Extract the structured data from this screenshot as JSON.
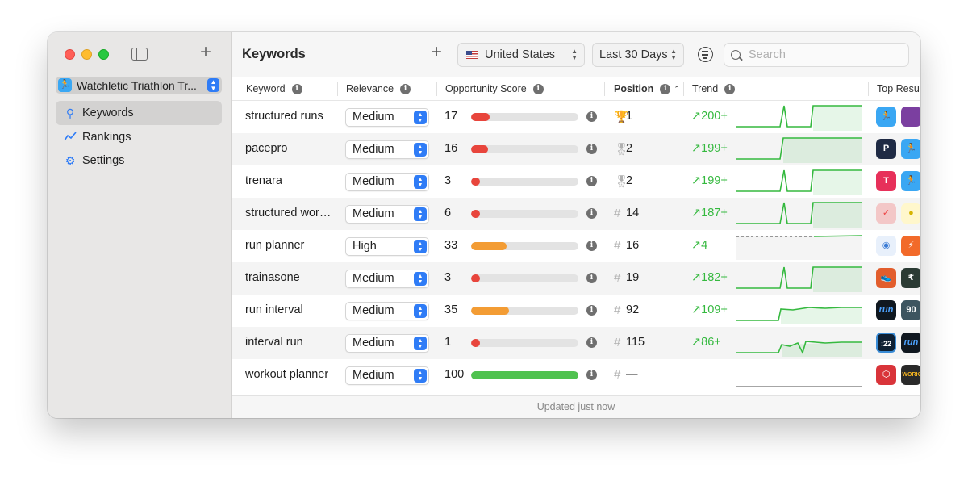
{
  "sidebar": {
    "app_name": "Watchletic Triathlon Tr...",
    "items": [
      {
        "label": "Keywords",
        "icon": "search-icon"
      },
      {
        "label": "Rankings",
        "icon": "chart-line-icon"
      },
      {
        "label": "Settings",
        "icon": "gear-icon"
      }
    ]
  },
  "toolbar": {
    "title": "Keywords",
    "country": "United States",
    "period": "Last 30 Days",
    "search_placeholder": "Search"
  },
  "table": {
    "headers": {
      "keyword": "Keyword",
      "relevance": "Relevance",
      "score": "Opportunity Score",
      "position": "Position",
      "trend": "Trend",
      "top_results": "Top Results"
    },
    "rows": [
      {
        "keyword": "structured runs",
        "relevance": "Medium",
        "score": "17",
        "score_value": 17,
        "score_color": "#e8453c",
        "position_icon": "trophy",
        "position": "1",
        "trend": "200+",
        "spark": "A"
      },
      {
        "keyword": "pacepro",
        "relevance": "Medium",
        "score": "16",
        "score_value": 16,
        "score_color": "#e8453c",
        "position_icon": "medal",
        "position": "2",
        "trend": "199+",
        "spark": "B"
      },
      {
        "keyword": "trenara",
        "relevance": "Medium",
        "score": "3",
        "score_value": 3,
        "score_color": "#e8453c",
        "position_icon": "medal",
        "position": "2",
        "trend": "199+",
        "spark": "A"
      },
      {
        "keyword": "structured workout",
        "relevance": "Medium",
        "score": "6",
        "score_value": 6,
        "score_color": "#e8453c",
        "position_icon": "hash",
        "position": "14",
        "trend": "187+",
        "spark": "A"
      },
      {
        "keyword": "run planner",
        "relevance": "High",
        "score": "33",
        "score_value": 33,
        "score_color": "#f39c34",
        "position_icon": "hash",
        "position": "16",
        "trend": "4",
        "spark": "C"
      },
      {
        "keyword": "trainasone",
        "relevance": "Medium",
        "score": "3",
        "score_value": 3,
        "score_color": "#e8453c",
        "position_icon": "hash",
        "position": "19",
        "trend": "182+",
        "spark": "A"
      },
      {
        "keyword": "run interval",
        "relevance": "Medium",
        "score": "35",
        "score_value": 35,
        "score_color": "#f39c34",
        "position_icon": "hash",
        "position": "92",
        "trend": "109+",
        "spark": "D"
      },
      {
        "keyword": "interval run",
        "relevance": "Medium",
        "score": "1",
        "score_value": 1,
        "score_color": "#e8453c",
        "position_icon": "hash",
        "position": "115",
        "trend": "86+",
        "spark": "E"
      },
      {
        "keyword": "workout planner",
        "relevance": "Medium",
        "score": "100",
        "score_value": 100,
        "score_color": "#4fc24f",
        "position_icon": "hash",
        "position": "—",
        "trend": "",
        "spark": "F"
      }
    ]
  },
  "footer": {
    "status": "Updated just now"
  },
  "colors": {
    "accent": "#2f7cf6",
    "trend_green": "#35b93f"
  }
}
